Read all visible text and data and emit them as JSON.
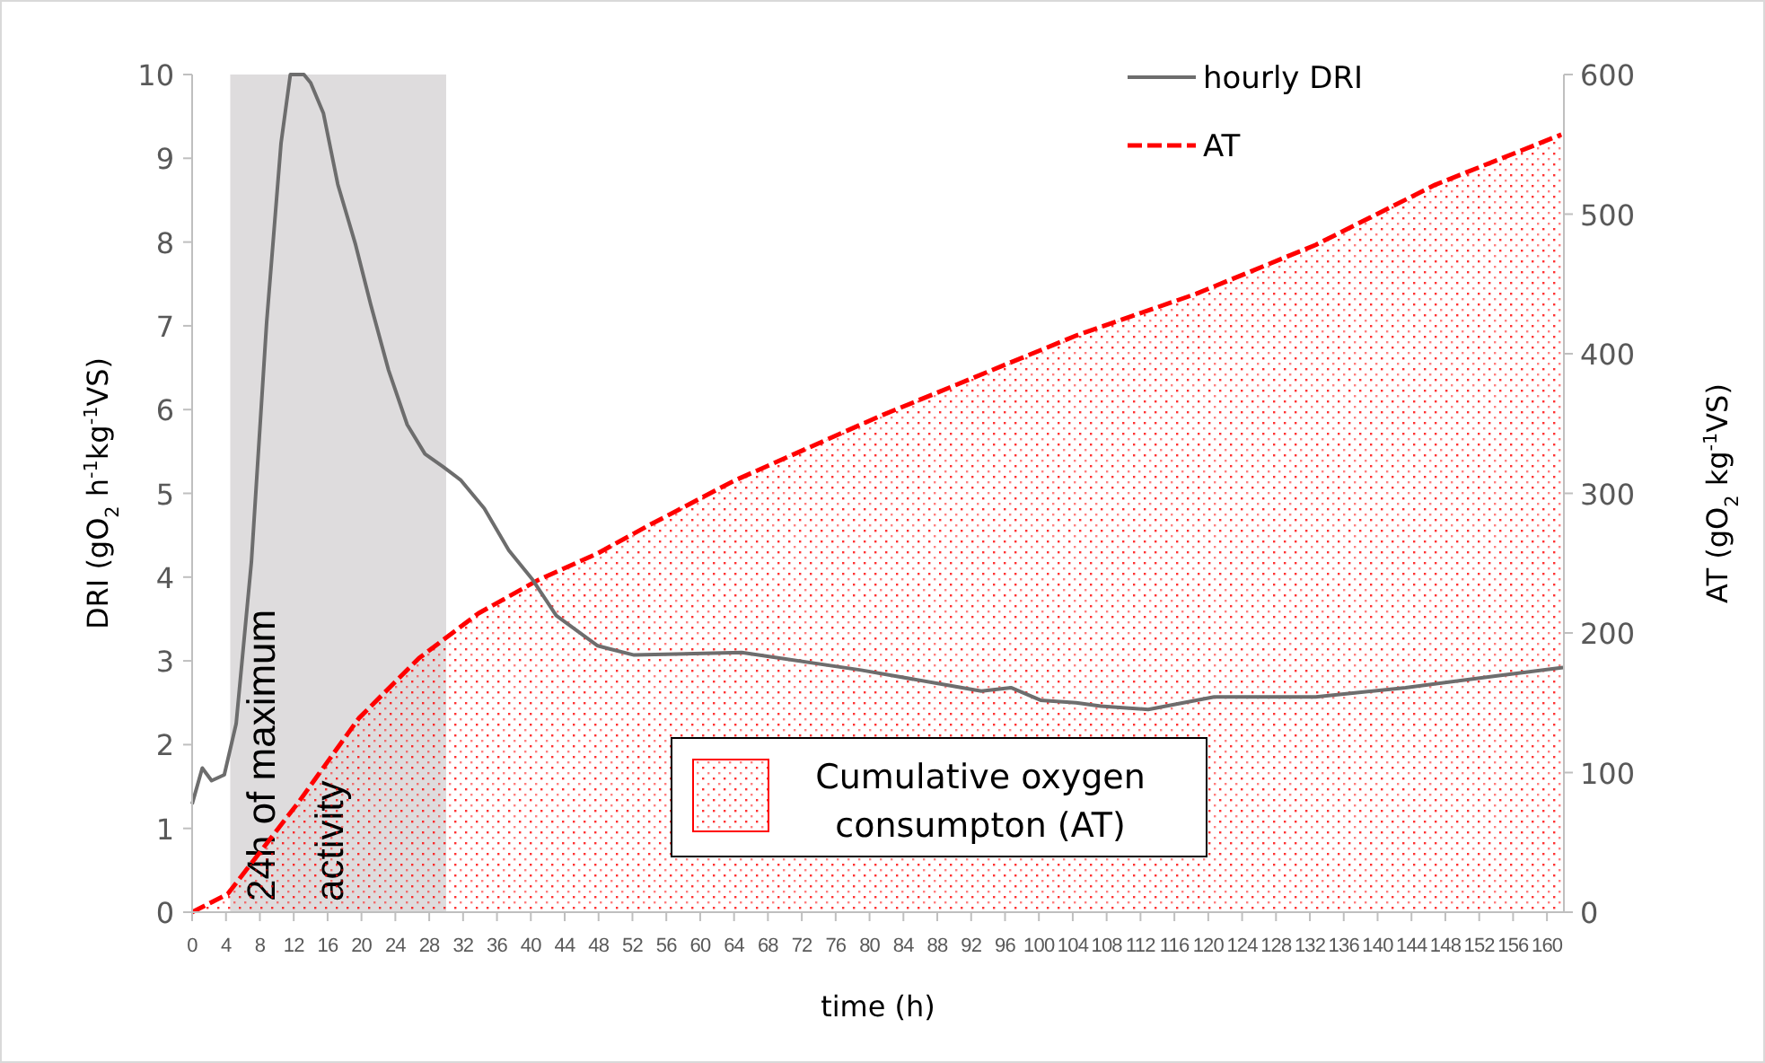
{
  "chart_data": {
    "type": "line",
    "xlabel": "time  (h)",
    "ylabel": "DRI (gO$_{2}$ h$^{-1}$kg$^{-1}$VS)",
    "y2label": "AT (gO$_{2}$ kg$^{-1}$VS)",
    "xlim": [
      0,
      162
    ],
    "xticks": [
      0,
      4,
      8,
      12,
      16,
      20,
      24,
      28,
      32,
      36,
      40,
      44,
      48,
      52,
      56,
      60,
      64,
      68,
      72,
      76,
      80,
      84,
      88,
      92,
      96,
      100,
      104,
      108,
      112,
      116,
      120,
      124,
      128,
      132,
      136,
      140,
      144,
      148,
      152,
      156,
      160
    ],
    "ylim": [
      0,
      10
    ],
    "yticks": [
      0,
      1,
      2,
      3,
      4,
      5,
      6,
      7,
      8,
      9,
      10
    ],
    "y2lim": [
      0,
      600
    ],
    "y2ticks": [
      0,
      100,
      200,
      300,
      400,
      500,
      600
    ],
    "series": [
      {
        "name": "hourly DRI",
        "color": "#6d6d6d",
        "line_style": "solid",
        "x": [
          0,
          1.2,
          2.3,
          3.8,
          5.2,
          7.0,
          8.8,
          10.5,
          11.6,
          12.3,
          13.2,
          14.0,
          15.5,
          17.2,
          19.3,
          21.1,
          23.2,
          25.4,
          27.5,
          29.6,
          31.7,
          34.5,
          37.4,
          40.2,
          43.0,
          47.9,
          49.4,
          52.2,
          64.9,
          79.0,
          93.2,
          96.7,
          100.2,
          104.4,
          107.3,
          112.9,
          118.6,
          120.7,
          132.7,
          143.3,
          153.9,
          161.9
        ],
        "values": [
          1.29,
          1.72,
          1.57,
          1.64,
          2.25,
          4.18,
          7.04,
          9.18,
          10.0,
          10.0,
          10.0,
          9.9,
          9.54,
          8.69,
          7.97,
          7.25,
          6.47,
          5.82,
          5.47,
          5.32,
          5.16,
          4.82,
          4.32,
          3.97,
          3.54,
          3.18,
          3.14,
          3.07,
          3.1,
          2.89,
          2.64,
          2.68,
          2.53,
          2.5,
          2.46,
          2.42,
          2.53,
          2.57,
          2.57,
          2.68,
          2.82,
          2.92
        ]
      },
      {
        "name": "AT",
        "type": "area",
        "axis": "y2",
        "color": "#ff0000",
        "line_style": "dashed",
        "x": [
          0,
          4.2,
          12.6,
          19.7,
          26.8,
          33.8,
          40.9,
          47.9,
          53.6,
          64,
          81.1,
          104.4,
          118.6,
          132.7,
          146.8,
          161.7
        ],
        "values": [
          0,
          13,
          79,
          139,
          182,
          214,
          238,
          257,
          276,
          309,
          355,
          413,
          443,
          478,
          521,
          557
        ]
      }
    ],
    "annotations": [
      "Cumulative oxygen consumpton (AT)"
    ],
    "bands": [
      {
        "axis": "x",
        "from": 4.5,
        "to": 30,
        "label": "24h of maximum activity",
        "color": "#dedcdd"
      }
    ],
    "legend": "top right",
    "grid": false
  }
}
